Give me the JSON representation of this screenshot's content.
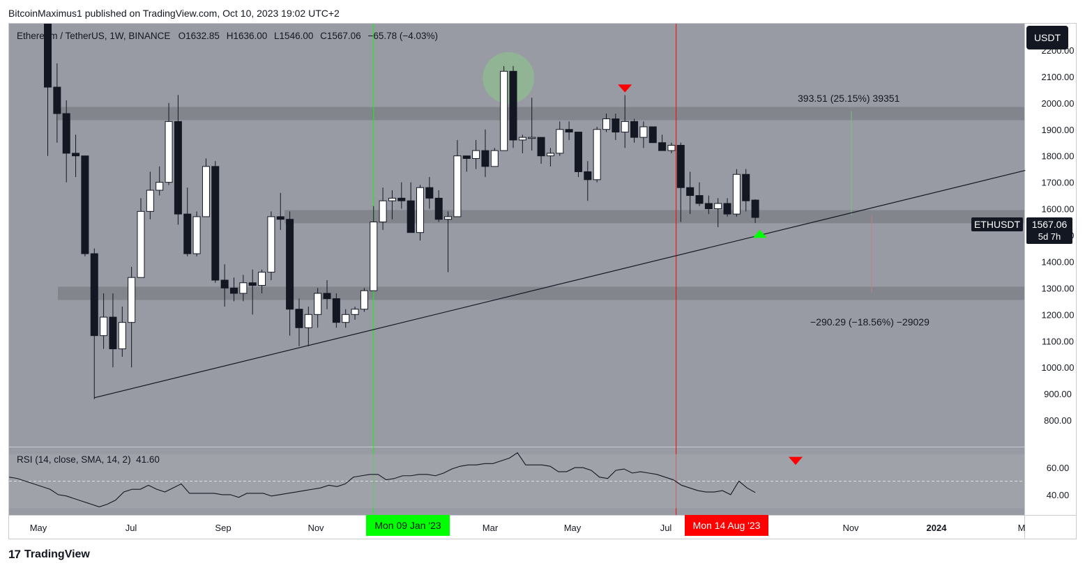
{
  "header": {
    "publisher_line": "BitcoinMaximus1 published on TradingView.com, Oct 10, 2023 19:02 UTC+2"
  },
  "legend": {
    "symbol": "Ethereum / TetherUS, 1W, BINANCE",
    "o_label": "O",
    "o": "1632.85",
    "h_label": "H",
    "h": "1636.00",
    "l_label": "L",
    "l": "1546.00",
    "c_label": "C",
    "c": "1567.06",
    "change": "−65.78 (−4.03%)"
  },
  "currency_button": "USDT",
  "price_tag": {
    "symbol": "ETHUSDT",
    "price": "1567.06",
    "countdown": "5d 7h"
  },
  "measure_up": "393.51 (25.15%) 39351",
  "measure_down": "−290.29 (−18.56%) −29029",
  "rsi_legend": {
    "label": "RSI (14, close, SMA, 14, 2)",
    "value": "41.60"
  },
  "date_tags": {
    "green": "Mon 09 Jan '23",
    "red": "Mon 14 Aug '23"
  },
  "footer": {
    "logo": "17",
    "brand": "TradingView"
  },
  "colors": {
    "green_line": "#00ff00",
    "red_line": "#ff0000",
    "bg": "#989ba3",
    "band": "#7f8189",
    "bull": "#ffffff",
    "bear": "#131722"
  },
  "chart_data": [
    {
      "type": "candlestick",
      "interval": "1W",
      "ylim": [
        700,
        2300
      ],
      "y_ticks": [
        800,
        900,
        1000,
        1100,
        1200,
        1300,
        1400,
        1500,
        1600,
        1700,
        1800,
        1900,
        2000,
        2100,
        2200
      ],
      "y_tick_labels": [
        "800.00",
        "900.00",
        "1000.00",
        "1100.00",
        "1200.00",
        "1300.00",
        "1400.00",
        "1500.00",
        "1600.00",
        "1700.00",
        "1800.00",
        "1900.00",
        "2000.00",
        "2100.00",
        "2200.00"
      ],
      "x_labels": [
        "May",
        "Jul",
        "Sep",
        "Nov",
        "Mar",
        "May",
        "Jul",
        "Nov",
        "2024",
        "M"
      ],
      "candles": [
        {
          "o": 2450,
          "h": 2500,
          "l": 1800,
          "c": 2060
        },
        {
          "o": 2060,
          "h": 2150,
          "l": 1850,
          "c": 1960
        },
        {
          "o": 1960,
          "h": 2010,
          "l": 1700,
          "c": 1810
        },
        {
          "o": 1810,
          "h": 1880,
          "l": 1720,
          "c": 1800
        },
        {
          "o": 1800,
          "h": 1800,
          "l": 1420,
          "c": 1430
        },
        {
          "o": 1430,
          "h": 1450,
          "l": 880,
          "c": 1120
        },
        {
          "o": 1120,
          "h": 1280,
          "l": 1070,
          "c": 1190
        },
        {
          "o": 1190,
          "h": 1280,
          "l": 1000,
          "c": 1070
        },
        {
          "o": 1070,
          "h": 1230,
          "l": 1040,
          "c": 1170
        },
        {
          "o": 1170,
          "h": 1380,
          "l": 1000,
          "c": 1340
        },
        {
          "o": 1340,
          "h": 1640,
          "l": 1340,
          "c": 1590
        },
        {
          "o": 1590,
          "h": 1740,
          "l": 1560,
          "c": 1670
        },
        {
          "o": 1670,
          "h": 1760,
          "l": 1650,
          "c": 1700
        },
        {
          "o": 1700,
          "h": 2000,
          "l": 1690,
          "c": 1930
        },
        {
          "o": 1930,
          "h": 2030,
          "l": 1540,
          "c": 1580
        },
        {
          "o": 1580,
          "h": 1680,
          "l": 1420,
          "c": 1430
        },
        {
          "o": 1430,
          "h": 1590,
          "l": 1420,
          "c": 1570
        },
        {
          "o": 1570,
          "h": 1790,
          "l": 1570,
          "c": 1760
        },
        {
          "o": 1760,
          "h": 1780,
          "l": 1320,
          "c": 1330
        },
        {
          "o": 1330,
          "h": 1390,
          "l": 1230,
          "c": 1300
        },
        {
          "o": 1300,
          "h": 1340,
          "l": 1250,
          "c": 1280
        },
        {
          "o": 1280,
          "h": 1350,
          "l": 1250,
          "c": 1320
        },
        {
          "o": 1320,
          "h": 1370,
          "l": 1200,
          "c": 1310
        },
        {
          "o": 1310,
          "h": 1370,
          "l": 1280,
          "c": 1360
        },
        {
          "o": 1360,
          "h": 1590,
          "l": 1330,
          "c": 1570
        },
        {
          "o": 1570,
          "h": 1660,
          "l": 1520,
          "c": 1560
        },
        {
          "o": 1560,
          "h": 1590,
          "l": 1120,
          "c": 1220
        },
        {
          "o": 1220,
          "h": 1260,
          "l": 1080,
          "c": 1150
        },
        {
          "o": 1150,
          "h": 1230,
          "l": 1080,
          "c": 1200
        },
        {
          "o": 1200,
          "h": 1300,
          "l": 1150,
          "c": 1280
        },
        {
          "o": 1280,
          "h": 1330,
          "l": 1220,
          "c": 1260
        },
        {
          "o": 1260,
          "h": 1280,
          "l": 1150,
          "c": 1170
        },
        {
          "o": 1170,
          "h": 1220,
          "l": 1150,
          "c": 1200
        },
        {
          "o": 1200,
          "h": 1230,
          "l": 1180,
          "c": 1220
        },
        {
          "o": 1220,
          "h": 1300,
          "l": 1210,
          "c": 1290
        },
        {
          "o": 1290,
          "h": 1610,
          "l": 1290,
          "c": 1550
        },
        {
          "o": 1550,
          "h": 1680,
          "l": 1520,
          "c": 1630
        },
        {
          "o": 1630,
          "h": 1670,
          "l": 1560,
          "c": 1640
        },
        {
          "o": 1640,
          "h": 1700,
          "l": 1600,
          "c": 1630
        },
        {
          "o": 1630,
          "h": 1700,
          "l": 1520,
          "c": 1510
        },
        {
          "o": 1510,
          "h": 1690,
          "l": 1480,
          "c": 1680
        },
        {
          "o": 1680,
          "h": 1720,
          "l": 1600,
          "c": 1640
        },
        {
          "o": 1640,
          "h": 1670,
          "l": 1550,
          "c": 1560
        },
        {
          "o": 1560,
          "h": 1590,
          "l": 1360,
          "c": 1570
        },
        {
          "o": 1570,
          "h": 1860,
          "l": 1570,
          "c": 1800
        },
        {
          "o": 1800,
          "h": 1800,
          "l": 1740,
          "c": 1790
        },
        {
          "o": 1790,
          "h": 1860,
          "l": 1750,
          "c": 1820
        },
        {
          "o": 1820,
          "h": 1900,
          "l": 1720,
          "c": 1760
        },
        {
          "o": 1760,
          "h": 1830,
          "l": 1760,
          "c": 1820
        },
        {
          "o": 1820,
          "h": 2140,
          "l": 1820,
          "c": 2120
        },
        {
          "o": 2120,
          "h": 2140,
          "l": 1830,
          "c": 1860
        },
        {
          "o": 1860,
          "h": 1880,
          "l": 1810,
          "c": 1870
        },
        {
          "o": 1870,
          "h": 2020,
          "l": 1820,
          "c": 1870
        },
        {
          "o": 1870,
          "h": 1860,
          "l": 1770,
          "c": 1800
        },
        {
          "o": 1800,
          "h": 1830,
          "l": 1760,
          "c": 1810
        },
        {
          "o": 1810,
          "h": 1930,
          "l": 1800,
          "c": 1900
        },
        {
          "o": 1900,
          "h": 1930,
          "l": 1860,
          "c": 1890
        },
        {
          "o": 1890,
          "h": 1890,
          "l": 1720,
          "c": 1740
        },
        {
          "o": 1740,
          "h": 1780,
          "l": 1630,
          "c": 1710
        },
        {
          "o": 1710,
          "h": 1910,
          "l": 1700,
          "c": 1900
        },
        {
          "o": 1900,
          "h": 1960,
          "l": 1890,
          "c": 1940
        },
        {
          "o": 1940,
          "h": 1960,
          "l": 1860,
          "c": 1890
        },
        {
          "o": 1890,
          "h": 2030,
          "l": 1830,
          "c": 1930
        },
        {
          "o": 1930,
          "h": 1940,
          "l": 1850,
          "c": 1870
        },
        {
          "o": 1870,
          "h": 1930,
          "l": 1830,
          "c": 1910
        },
        {
          "o": 1910,
          "h": 1910,
          "l": 1850,
          "c": 1850
        },
        {
          "o": 1850,
          "h": 1880,
          "l": 1830,
          "c": 1820
        },
        {
          "o": 1820,
          "h": 1850,
          "l": 1810,
          "c": 1840
        },
        {
          "o": 1840,
          "h": 1850,
          "l": 1550,
          "c": 1680
        },
        {
          "o": 1680,
          "h": 1740,
          "l": 1580,
          "c": 1650
        },
        {
          "o": 1650,
          "h": 1700,
          "l": 1610,
          "c": 1620
        },
        {
          "o": 1620,
          "h": 1650,
          "l": 1580,
          "c": 1600
        },
        {
          "o": 1600,
          "h": 1640,
          "l": 1530,
          "c": 1620
        },
        {
          "o": 1620,
          "h": 1640,
          "l": 1570,
          "c": 1580
        },
        {
          "o": 1580,
          "h": 1750,
          "l": 1570,
          "c": 1730
        },
        {
          "o": 1730,
          "h": 1750,
          "l": 1590,
          "c": 1630
        },
        {
          "o": 1632.85,
          "h": 1636.0,
          "l": 1546.0,
          "c": 1567.06
        }
      ],
      "horizontal_bands": [
        [
          1935,
          1985
        ],
        [
          1545,
          1595
        ],
        [
          1255,
          1305
        ]
      ],
      "trendline": [
        {
          "candle_index": 5,
          "price": 885
        },
        {
          "candle_index": 76,
          "price": 1545
        },
        {
          "candle_index": 105,
          "price": 1745
        }
      ],
      "vertical_lines": [
        {
          "candle_index": 35,
          "color": "green"
        },
        {
          "candle_index": 67.5,
          "color": "red"
        }
      ]
    },
    {
      "type": "line",
      "name": "RSI (14, close, SMA, 14, 2)",
      "ylim": [
        25,
        75
      ],
      "y_ticks": [
        40,
        60
      ],
      "y_tick_labels": [
        "40.00",
        "60.00"
      ],
      "reference_line": 50,
      "values": [
        53,
        52,
        50,
        48,
        46,
        44,
        40,
        39,
        37,
        35,
        33,
        31,
        33,
        36,
        42,
        44,
        44,
        47,
        44,
        42,
        45,
        48,
        41,
        41,
        41,
        41,
        40,
        40,
        38,
        41,
        41,
        41,
        39,
        40,
        41,
        42,
        43,
        44,
        45,
        47,
        46,
        48,
        53,
        54,
        55,
        55,
        51,
        52,
        54,
        54,
        55,
        55,
        54,
        56,
        59,
        61,
        62,
        62,
        63,
        63,
        65,
        67,
        71,
        62,
        62,
        62,
        61,
        57,
        57,
        60,
        60,
        58,
        53,
        52,
        58,
        59,
        56,
        57,
        56,
        55,
        53,
        51,
        47,
        45,
        43,
        42,
        42,
        43,
        40,
        50,
        45,
        41.6
      ]
    }
  ]
}
